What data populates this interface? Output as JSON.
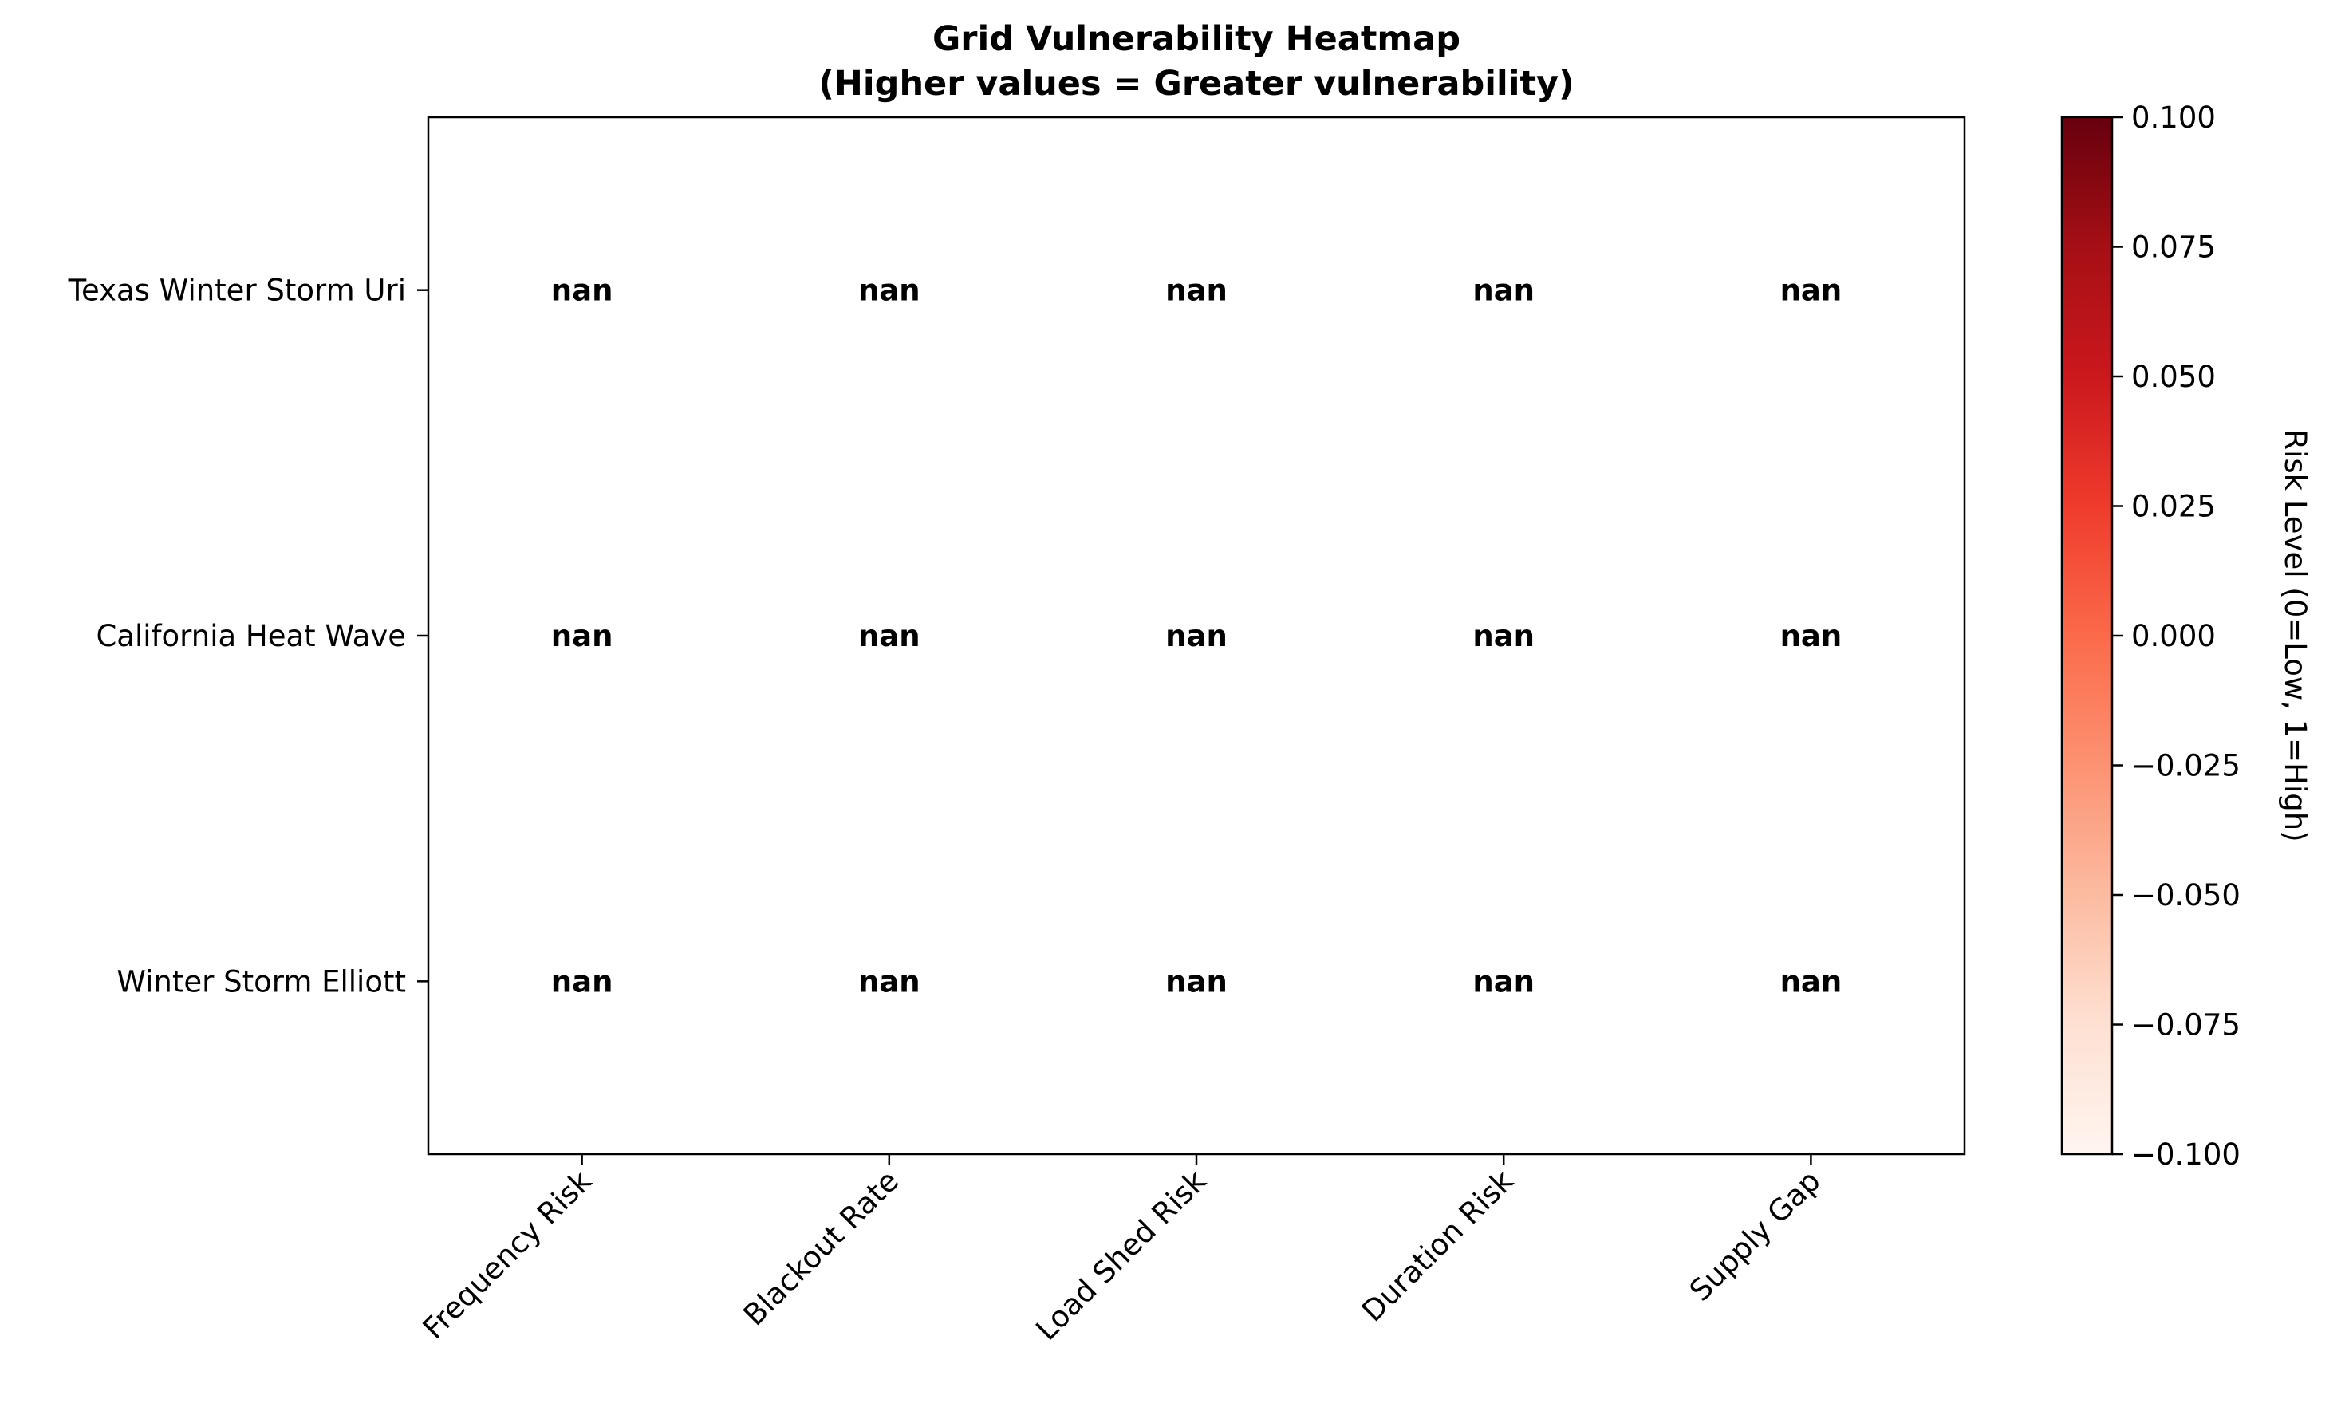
{
  "chart_data": {
    "type": "heatmap",
    "title": "Grid Vulnerability Heatmap",
    "subtitle": "(Higher values = Greater vulnerability)",
    "rows": [
      "Texas Winter Storm Uri",
      "California Heat Wave",
      "Winter Storm Elliott"
    ],
    "columns": [
      "Frequency Risk",
      "Blackout Rate",
      "Load Shed Risk",
      "Duration Risk",
      "Supply Gap"
    ],
    "values": [
      [
        "nan",
        "nan",
        "nan",
        "nan",
        "nan"
      ],
      [
        "nan",
        "nan",
        "nan",
        "nan",
        "nan"
      ],
      [
        "nan",
        "nan",
        "nan",
        "nan",
        "nan"
      ]
    ],
    "colormap": "Reds",
    "colorbar": {
      "label": "Risk Level (0=Low, 1=High)",
      "range": [
        -0.1,
        0.1
      ],
      "ticks": [
        "0.100",
        "0.075",
        "0.050",
        "0.025",
        "0.000",
        "−0.025",
        "−0.050",
        "−0.075",
        "−0.100"
      ],
      "colors": [
        "#fff5f0",
        "#fee0d2",
        "#fcbba1",
        "#fc9272",
        "#fb6a4a",
        "#ef3b2c",
        "#cb181d",
        "#a50f15",
        "#67000d"
      ]
    },
    "grid": false
  }
}
